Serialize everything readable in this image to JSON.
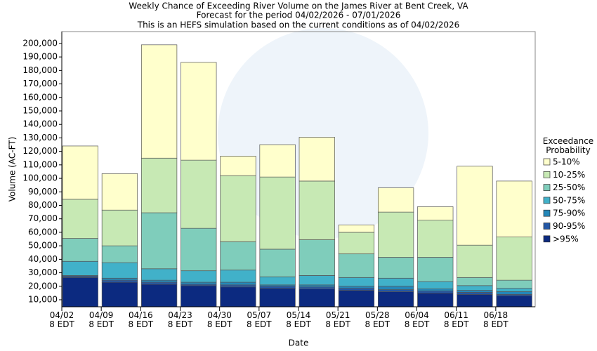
{
  "chart_data": {
    "type": "stacked_bar",
    "title": "Weekly Chance of Exceeding River Volume on the James River at Bent Creek, VA",
    "subtitles": [
      "Forecast for the period 04/02/2026 - 07/01/2026",
      "This is an HEFS simulation based on the current conditions as of 04/02/2026"
    ],
    "x_label": "Date",
    "y_label": "Volume (AC-FT)",
    "legend_title": "Exceedance\nProbability",
    "legend_position": "right",
    "categories": [
      "04/02\n8 EDT",
      "04/09\n8 EDT",
      "04/16\n8 EDT",
      "04/23\n8 EDT",
      "04/30\n8 EDT",
      "05/07\n8 EDT",
      "05/14\n8 EDT",
      "05/21\n8 EDT",
      "05/28\n8 EDT",
      "06/04\n8 EDT",
      "06/11\n8 EDT",
      "06/18\n8 EDT"
    ],
    "series": [
      {
        "name": ">95%",
        "color": "#0c2a80",
        "values": [
          26500,
          23000,
          21500,
          20500,
          19500,
          18500,
          18000,
          17000,
          16000,
          15000,
          14000,
          13000
        ]
      },
      {
        "name": "90-95%",
        "color": "#2357a6",
        "values": [
          1000,
          1500,
          1500,
          1000,
          1500,
          1500,
          1500,
          1500,
          1500,
          1500,
          1500,
          1000
        ]
      },
      {
        "name": "75-90%",
        "color": "#2487b9",
        "values": [
          500,
          1500,
          1500,
          1500,
          2000,
          1000,
          1500,
          1500,
          2500,
          1500,
          1500,
          2000
        ]
      },
      {
        "name": "50-75%",
        "color": "#41b1c9",
        "values": [
          10500,
          11500,
          8500,
          8500,
          9000,
          6000,
          7000,
          6500,
          6000,
          5500,
          3500,
          2500
        ]
      },
      {
        "name": "25-50%",
        "color": "#7fcdbb",
        "values": [
          17000,
          12500,
          41500,
          31500,
          21000,
          20500,
          26500,
          17500,
          15500,
          18000,
          6000,
          6000
        ]
      },
      {
        "name": "10-25%",
        "color": "#c7e9b4",
        "values": [
          29000,
          26500,
          40500,
          50500,
          49000,
          53500,
          43500,
          16000,
          33500,
          27500,
          24000,
          32000
        ]
      },
      {
        "name": "5-10%",
        "color": "#ffffcc",
        "values": [
          39500,
          27000,
          84000,
          72500,
          14500,
          24000,
          32500,
          5500,
          18000,
          10000,
          58500,
          41500
        ]
      }
    ],
    "ylim": [
      4800,
      208800
    ],
    "yticks": [
      {
        "value": 10000,
        "label": "10,000"
      },
      {
        "value": 20000,
        "label": "20,000"
      },
      {
        "value": 30000,
        "label": "30,000"
      },
      {
        "value": 40000,
        "label": "40,000"
      },
      {
        "value": 50000,
        "label": "50,000"
      },
      {
        "value": 60000,
        "label": "60,000"
      },
      {
        "value": 70000,
        "label": "70,000"
      },
      {
        "value": 80000,
        "label": "80,000"
      },
      {
        "value": 90000,
        "label": "90,000"
      },
      {
        "value": 100000,
        "label": "100,000"
      },
      {
        "value": 110000,
        "label": "110,000"
      },
      {
        "value": 120000,
        "label": "120,000"
      },
      {
        "value": 130000,
        "label": "130,000"
      },
      {
        "value": 140000,
        "label": "140,000"
      },
      {
        "value": 150000,
        "label": "150,000"
      },
      {
        "value": 160000,
        "label": "160,000"
      },
      {
        "value": 170000,
        "label": "170,000"
      },
      {
        "value": 180000,
        "label": "180,000"
      },
      {
        "value": 190000,
        "label": "190,000"
      },
      {
        "value": 200000,
        "label": "200,000"
      }
    ]
  }
}
